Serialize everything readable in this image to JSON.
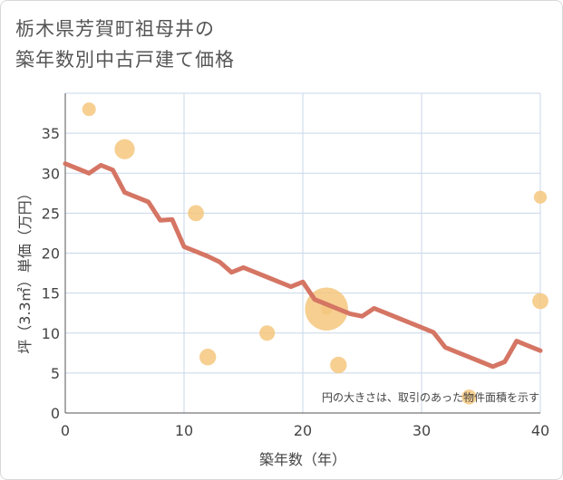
{
  "title_lines": [
    "栃木県芳賀町祖母井の",
    "築年数別中古戸建て価格"
  ],
  "chart_data": {
    "type": "scatter+line",
    "xlabel": "築年数（年）",
    "ylabel": "坪（3.3㎡）単価（万円）",
    "xlim": [
      0,
      40
    ],
    "ylim": [
      0,
      40
    ],
    "xticks": [
      0,
      10,
      20,
      30,
      40
    ],
    "yticks": [
      0,
      5,
      10,
      15,
      20,
      25,
      30,
      35
    ],
    "grid": true,
    "annotation": "円の大きさは、取引のあった物件面積を示す",
    "colors": {
      "scatter": "#f5c77e",
      "line": "#d57564",
      "grid": "#c9d7ea",
      "plot_bg": "#ffffff"
    },
    "scatter": [
      {
        "x": 2,
        "y": 38,
        "size": 1
      },
      {
        "x": 5,
        "y": 33,
        "size": 2.2
      },
      {
        "x": 11,
        "y": 25,
        "size": 1.4
      },
      {
        "x": 12,
        "y": 7,
        "size": 1.5
      },
      {
        "x": 17,
        "y": 10,
        "size": 1.3
      },
      {
        "x": 22,
        "y": 13,
        "size": 10
      },
      {
        "x": 22,
        "y": 13,
        "size": 0.7
      },
      {
        "x": 23,
        "y": 6,
        "size": 1.5
      },
      {
        "x": 34,
        "y": 2,
        "size": 1.2
      },
      {
        "x": 40,
        "y": 27,
        "size": 0.9
      },
      {
        "x": 40,
        "y": 14,
        "size": 1.4
      }
    ],
    "line": {
      "x": [
        0,
        1,
        2,
        3,
        4,
        5,
        6,
        7,
        8,
        9,
        10,
        11,
        12,
        13,
        14,
        15,
        16,
        17,
        18,
        19,
        20,
        21,
        22,
        23,
        24,
        25,
        26,
        27,
        28,
        29,
        30,
        31,
        32,
        33,
        34,
        35,
        36,
        37,
        38,
        39,
        40
      ],
      "y": [
        31.2,
        30.6,
        30.0,
        31.0,
        30.4,
        27.6,
        27.0,
        26.4,
        24.1,
        24.2,
        20.8,
        20.2,
        19.6,
        18.9,
        17.6,
        18.2,
        17.6,
        17.0,
        16.4,
        15.8,
        16.4,
        14.2,
        13.6,
        13.0,
        12.4,
        12.1,
        13.1,
        12.5,
        11.9,
        11.3,
        10.7,
        10.1,
        8.2,
        7.6,
        7.0,
        6.4,
        5.8,
        6.4,
        9.0,
        8.4,
        7.8
      ]
    }
  }
}
